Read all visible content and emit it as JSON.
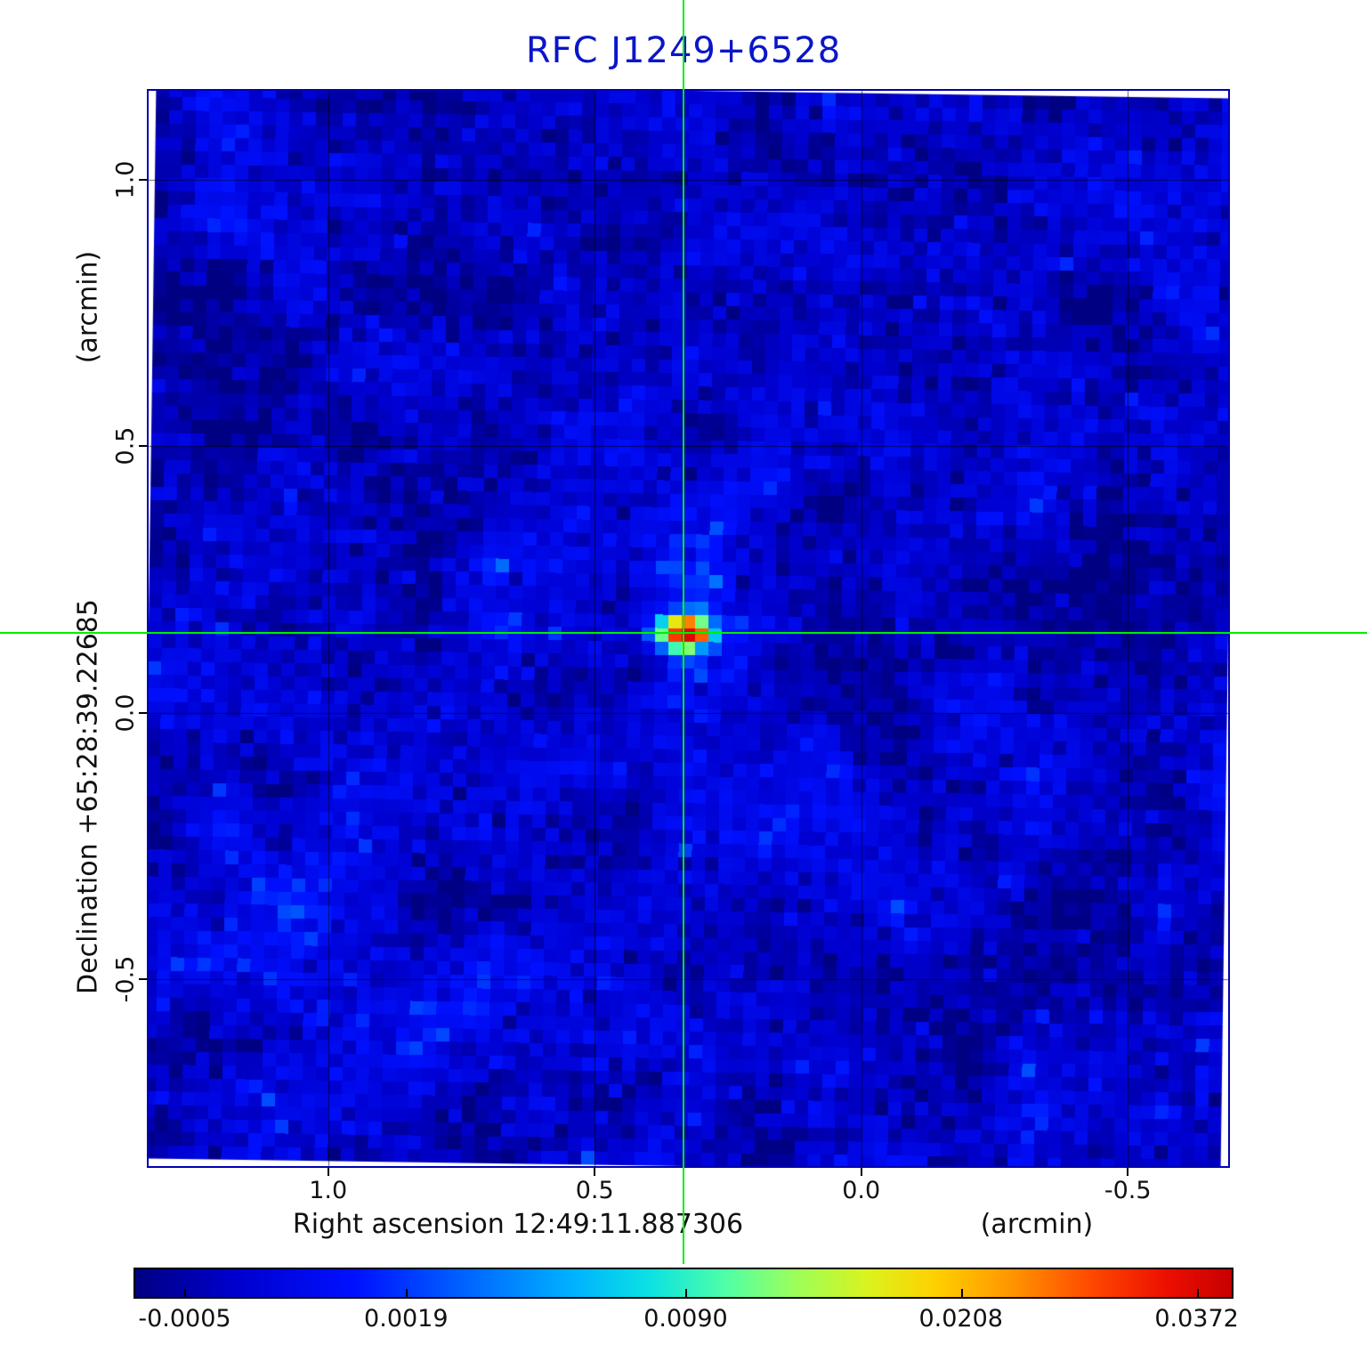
{
  "colors": {
    "title": "#0a16c8",
    "frame": "#0000b2",
    "crosshair": "#00ee00",
    "grid": "#000000",
    "background": "#ffffff"
  },
  "chart_data": {
    "type": "heatmap",
    "title": "RFC J1249+6528",
    "x_axis": {
      "label": "Right ascension  12:49:11.887306",
      "unit_label": "(arcmin)",
      "range": [
        1.3367,
        -0.6883
      ],
      "ticks": [
        {
          "value": 1.0,
          "label": "1.0"
        },
        {
          "value": 0.5,
          "label": "0.5"
        },
        {
          "value": 0.0,
          "label": "0.0"
        },
        {
          "value": -0.5,
          "label": "-0.5"
        }
      ]
    },
    "y_axis": {
      "label": "Declination  +65:28:39.22685",
      "unit_label": "(arcmin)",
      "range": [
        1.1667,
        -0.85
      ],
      "ticks": [
        {
          "value": 1.0,
          "label": "1.0"
        },
        {
          "value": 0.5,
          "label": "0.5"
        },
        {
          "value": 0.0,
          "label": "0.0"
        },
        {
          "value": -0.5,
          "label": "-0.5"
        }
      ]
    },
    "crosshair": {
      "x_arcmin": 0.333,
      "y_arcmin": 0.15
    },
    "source": {
      "x_arcmin": 0.333,
      "y_arcmin": 0.15,
      "shape": "elliptical-gaussian",
      "peak_norm": 0.88,
      "sigma_x_cells": 1.3,
      "sigma_y_cells": 0.85
    },
    "noise": {
      "base": 0.09,
      "fine_sigma": 0.042,
      "coarse_sigma": 0.05
    },
    "colorbar": {
      "scale": "nonlinear",
      "ticks": [
        {
          "label": "-0.0005",
          "value": -0.0005,
          "position": 0.045
        },
        {
          "label": "0.0019",
          "value": 0.0019,
          "position": 0.247
        },
        {
          "label": "0.0090",
          "value": 0.009,
          "position": 0.502
        },
        {
          "label": "0.0208",
          "value": 0.0208,
          "position": 0.753
        },
        {
          "label": "0.0372",
          "value": 0.0372,
          "position": 0.968
        }
      ],
      "colormap_stops": [
        {
          "pos": 0.0,
          "color": "#000083"
        },
        {
          "pos": 0.09,
          "color": "#0000cd"
        },
        {
          "pos": 0.2,
          "color": "#0010ff"
        },
        {
          "pos": 0.3,
          "color": "#0063ff"
        },
        {
          "pos": 0.4,
          "color": "#00b3ff"
        },
        {
          "pos": 0.47,
          "color": "#0ce2e2"
        },
        {
          "pos": 0.54,
          "color": "#51ffa5"
        },
        {
          "pos": 0.6,
          "color": "#9aff5c"
        },
        {
          "pos": 0.67,
          "color": "#dcf21c"
        },
        {
          "pos": 0.73,
          "color": "#ffd000"
        },
        {
          "pos": 0.8,
          "color": "#ff9400"
        },
        {
          "pos": 0.87,
          "color": "#ff4a00"
        },
        {
          "pos": 0.94,
          "color": "#ec0f00"
        },
        {
          "pos": 1.0,
          "color": "#c80000"
        }
      ]
    }
  }
}
